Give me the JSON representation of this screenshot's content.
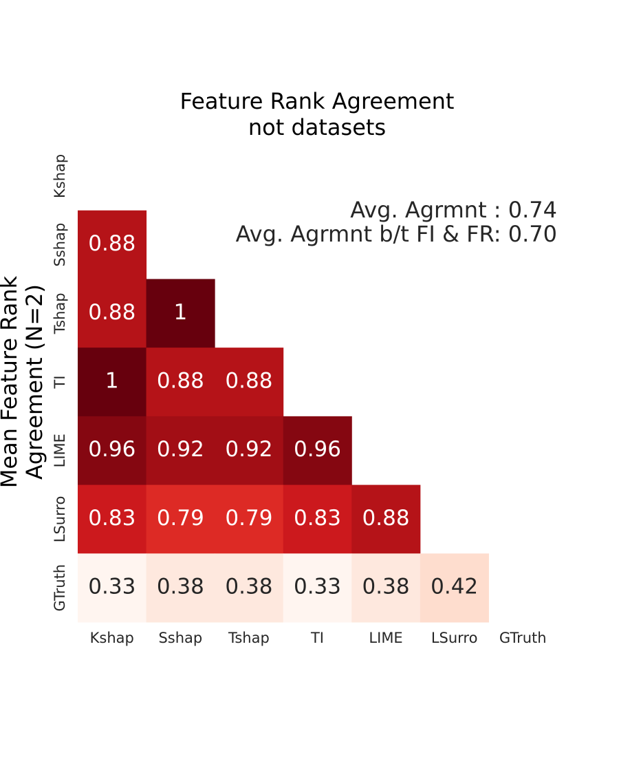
{
  "chart_data": {
    "type": "heatmap",
    "title": [
      "Feature Rank Agreement",
      "not datasets"
    ],
    "ylabel": [
      "Mean Feature Rank",
      "Agreement (N=2)"
    ],
    "annotations": [
      "Avg. Agrmnt : 0.74",
      "Avg. Agrmnt b/t FI & FR: 0.70"
    ],
    "x": [
      "Kshap",
      "Sshap",
      "Tshap",
      "TI",
      "LIME",
      "LSurro",
      "GTruth"
    ],
    "y": [
      "Kshap",
      "Sshap",
      "Tshap",
      "TI",
      "LIME",
      "LSurro",
      "GTruth"
    ],
    "values": [
      [
        null,
        null,
        null,
        null,
        null,
        null,
        null
      ],
      [
        0.88,
        null,
        null,
        null,
        null,
        null,
        null
      ],
      [
        0.88,
        1,
        null,
        null,
        null,
        null,
        null
      ],
      [
        1,
        0.88,
        0.88,
        null,
        null,
        null,
        null
      ],
      [
        0.96,
        0.92,
        0.92,
        0.96,
        null,
        null,
        null
      ],
      [
        0.83,
        0.79,
        0.79,
        0.83,
        0.88,
        null,
        null
      ],
      [
        0.33,
        0.38,
        0.38,
        0.33,
        0.38,
        0.42,
        null
      ]
    ],
    "colormap": [
      "#fff5f0",
      "#fee0d2",
      "#fcbba1",
      "#fc9272",
      "#fb6a4a",
      "#ef3b2c",
      "#cb181d",
      "#a50f15",
      "#67000d"
    ]
  }
}
